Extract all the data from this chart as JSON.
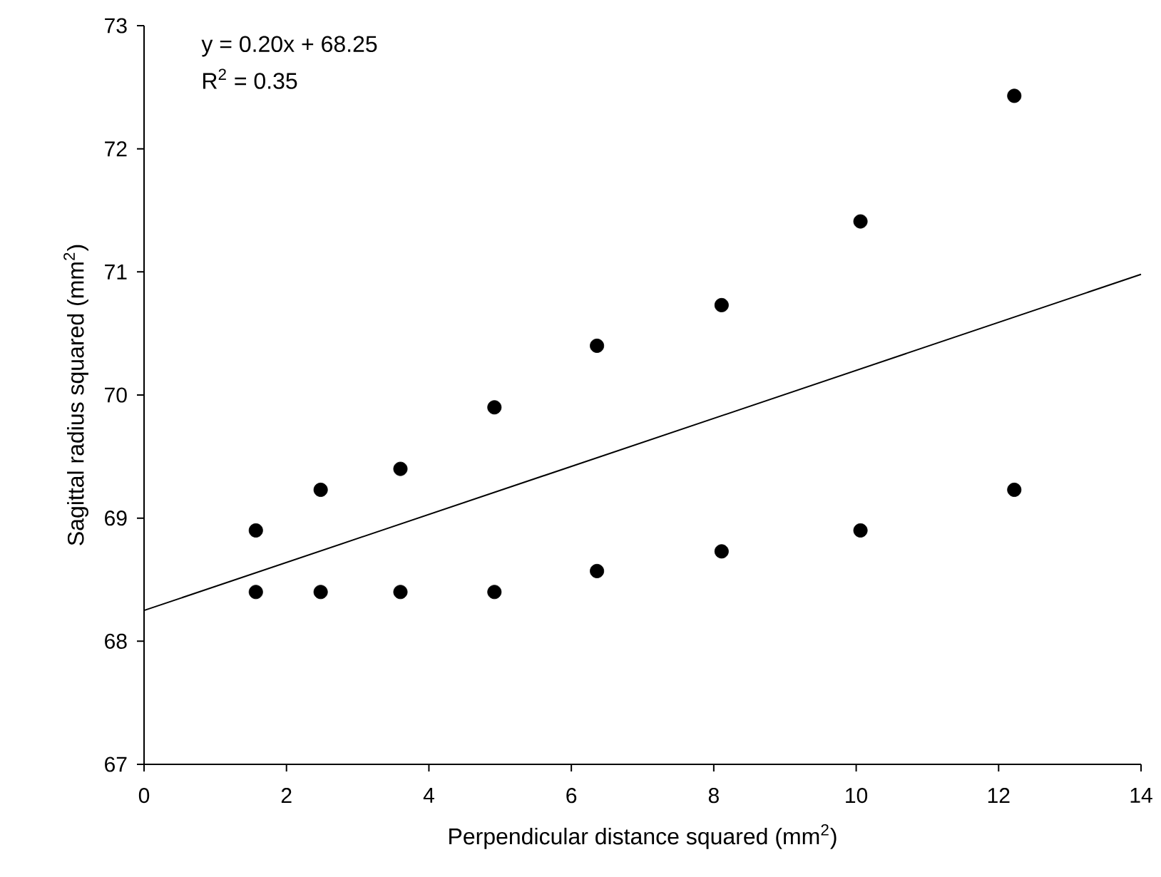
{
  "chart_data": {
    "type": "scatter",
    "xlabel": "Perpendicular distance squared (mm$^{2}$)",
    "ylabel": "Sagittal radius squared (mm$^{2}$)",
    "annotations": [
      "y = 0.20x + 68.25",
      "R$^{2}$ = 0.35"
    ],
    "xlim": [
      0,
      14
    ],
    "xticks": [
      0,
      2,
      4,
      6,
      8,
      10,
      12,
      14
    ],
    "ylim": [
      67,
      73
    ],
    "yticks": [
      67,
      68,
      69,
      70,
      71,
      72,
      73
    ],
    "series": [
      {
        "color": "#000000",
        "marker": "circle",
        "x": [
          1.57,
          2.48,
          3.6,
          4.92,
          6.36,
          8.11,
          10.06,
          12.22,
          1.57,
          2.48,
          3.6,
          4.92,
          6.36,
          8.11,
          10.06,
          12.22
        ],
        "values": [
          68.9,
          69.23,
          69.4,
          69.9,
          70.4,
          70.73,
          71.41,
          72.43,
          68.4,
          68.4,
          68.4,
          68.4,
          68.57,
          68.73,
          68.9,
          69.23
        ]
      },
      {
        "type": "line",
        "color": "#000000",
        "marker": "none",
        "line_style": "solid",
        "x": [
          0,
          14
        ],
        "values": [
          68.25,
          70.98
        ]
      }
    ]
  }
}
